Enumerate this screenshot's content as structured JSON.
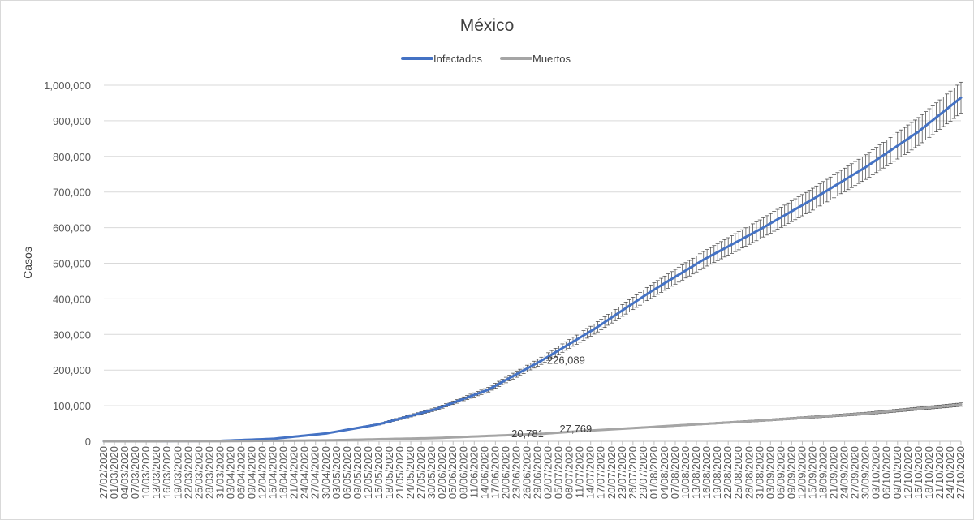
{
  "chart_data": {
    "type": "line",
    "title": "México",
    "ylabel": "Casos",
    "xlabel": "",
    "ylim": [
      0,
      1000000
    ],
    "yticks": [
      "0",
      "100,000",
      "200,000",
      "300,000",
      "400,000",
      "500,000",
      "600,000",
      "700,000",
      "800,000",
      "900,000",
      "1,000,000"
    ],
    "legend_position": "top-center",
    "grid": "horizontal",
    "x_start": "27/02/2020",
    "x_end": "27/10/2020",
    "x_tick_labels": [
      "27/02/2020",
      "01/03/2020",
      "04/03/2020",
      "07/03/2020",
      "10/03/2020",
      "13/03/2020",
      "16/03/2020",
      "19/03/2020",
      "22/03/2020",
      "25/03/2020",
      "28/03/2020",
      "31/03/2020",
      "03/04/2020",
      "06/04/2020",
      "09/04/2020",
      "12/04/2020",
      "15/04/2020",
      "18/04/2020",
      "21/04/2020",
      "24/04/2020",
      "27/04/2020",
      "30/04/2020",
      "03/05/2020",
      "06/05/2020",
      "09/05/2020",
      "12/05/2020",
      "15/05/2020",
      "18/05/2020",
      "21/05/2020",
      "24/05/2020",
      "27/05/2020",
      "30/05/2020",
      "02/06/2020",
      "05/06/2020",
      "08/06/2020",
      "11/06/2020",
      "14/06/2020",
      "17/06/2020",
      "20/06/2020",
      "23/06/2020",
      "26/06/2020",
      "29/06/2020",
      "02/07/2020",
      "05/07/2020",
      "08/07/2020",
      "11/07/2020",
      "14/07/2020",
      "17/07/2020",
      "20/07/2020",
      "23/07/2020",
      "26/07/2020",
      "29/07/2020",
      "01/08/2020",
      "04/08/2020",
      "07/08/2020",
      "10/08/2020",
      "13/08/2020",
      "16/08/2020",
      "19/08/2020",
      "22/08/2020",
      "25/08/2020",
      "28/08/2020",
      "31/08/2020",
      "03/09/2020",
      "06/09/2020",
      "09/09/2020",
      "12/09/2020",
      "15/09/2020",
      "18/09/2020",
      "21/09/2020",
      "24/09/2020",
      "27/09/2020",
      "30/09/2020",
      "03/10/2020",
      "06/10/2020",
      "09/10/2020",
      "12/10/2020",
      "15/10/2020",
      "18/10/2020",
      "21/10/2020",
      "24/10/2020",
      "27/10/2020"
    ],
    "error_bar_fraction": 0.045,
    "series": [
      {
        "name": "Infectados",
        "color": "#4472c4",
        "x": [
          "27/02/2020",
          "31/03/2020",
          "15/04/2020",
          "30/04/2020",
          "15/05/2020",
          "31/05/2020",
          "15/06/2020",
          "30/06/2020",
          "15/07/2020",
          "31/07/2020",
          "15/08/2020",
          "31/08/2020",
          "15/09/2020",
          "30/09/2020",
          "15/10/2020",
          "27/10/2020"
        ],
        "values": [
          0,
          1200,
          7000,
          22000,
          48000,
          90000,
          145000,
          226089,
          315000,
          420000,
          510000,
          595000,
          680000,
          770000,
          870000,
          965000
        ]
      },
      {
        "name": "Muertos",
        "color": "#a5a5a5",
        "x": [
          "27/02/2020",
          "31/03/2020",
          "30/04/2020",
          "31/05/2020",
          "15/06/2020",
          "30/06/2020",
          "10/07/2020",
          "31/07/2020",
          "31/08/2020",
          "30/09/2020",
          "27/10/2020"
        ],
        "values": [
          0,
          300,
          2500,
          9000,
          15000,
          20781,
          27769,
          40000,
          58000,
          78000,
          103000
        ]
      }
    ],
    "annotations": [
      {
        "text": "226,089",
        "x": "30/06/2020",
        "series": "Infectados"
      },
      {
        "text": "20,781",
        "x": "30/06/2020",
        "series": "Muertos"
      },
      {
        "text": "27,769",
        "x": "10/07/2020",
        "series": "Muertos"
      }
    ]
  }
}
